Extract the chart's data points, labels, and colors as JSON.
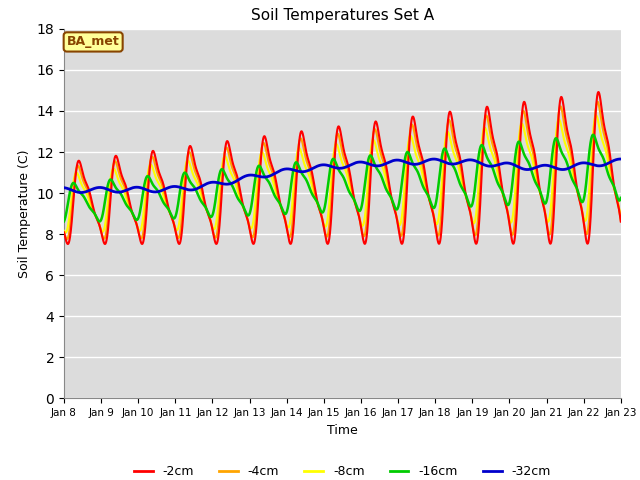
{
  "title": "Soil Temperatures Set A",
  "xlabel": "Time",
  "ylabel": "Soil Temperature (C)",
  "ylim": [
    0,
    18
  ],
  "yticks": [
    0,
    2,
    4,
    6,
    8,
    10,
    12,
    14,
    16,
    18
  ],
  "x_tick_labels": [
    "Jan 8",
    "Jan 9",
    "Jan 10",
    "Jan 11",
    "Jan 12",
    "Jan 13",
    "Jan 14",
    "Jan 15",
    "Jan 16",
    "Jan 17",
    "Jan 18",
    "Jan 19",
    "Jan 20",
    "Jan 21",
    "Jan 22",
    "Jan 23"
  ],
  "annotation_text": "BA_met",
  "annotation_bg": "#FFFF99",
  "annotation_border": "#884400",
  "colors": {
    "-2cm": "#FF0000",
    "-4cm": "#FFA500",
    "-8cm": "#FFFF00",
    "-16cm": "#00CC00",
    "-32cm": "#0000CC"
  },
  "line_widths": {
    "-2cm": 1.5,
    "-4cm": 1.5,
    "-8cm": 1.5,
    "-16cm": 1.8,
    "-32cm": 2.0
  },
  "plot_bg_color": "#DCDCDC",
  "figsize": [
    6.4,
    4.8
  ],
  "dpi": 100
}
